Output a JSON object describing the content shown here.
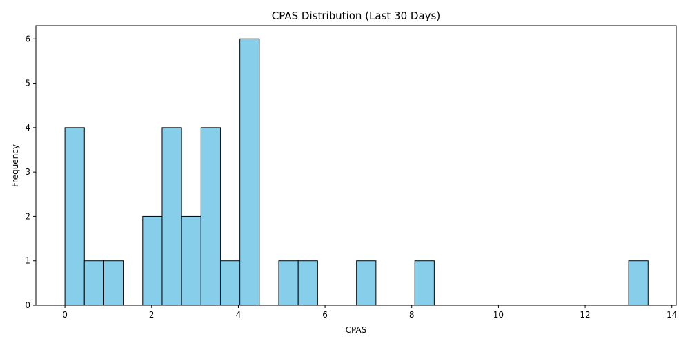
{
  "chart_data": {
    "type": "bar",
    "title": "CPAS Distribution (Last 30 Days)",
    "xlabel": "CPAS",
    "ylabel": "Frequency",
    "xlim": [
      -0.67,
      14.1
    ],
    "ylim": [
      0,
      6.3
    ],
    "xticks": [
      0,
      2,
      4,
      6,
      8,
      10,
      12,
      14
    ],
    "yticks": [
      0,
      1,
      2,
      3,
      4,
      5,
      6
    ],
    "bin_start": 0.0,
    "bin_width": 0.4484,
    "bins": 30,
    "values": [
      4,
      1,
      1,
      0,
      2,
      4,
      2,
      4,
      1,
      6,
      0,
      1,
      1,
      0,
      0,
      1,
      0,
      0,
      1,
      0,
      0,
      0,
      0,
      0,
      0,
      0,
      0,
      0,
      0,
      1
    ],
    "bar_color": "#87ceeb",
    "edge_color": "#000000",
    "grid": false,
    "legend": "none"
  }
}
